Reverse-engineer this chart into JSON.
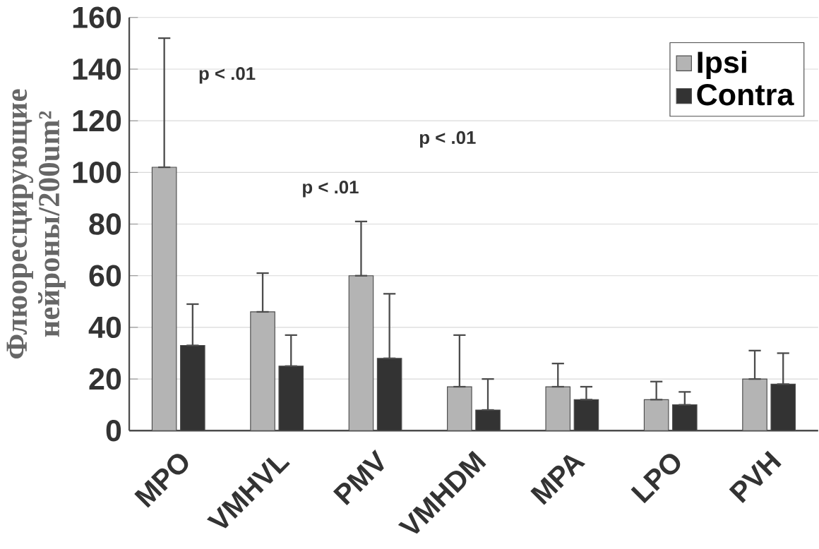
{
  "chart_data": {
    "type": "bar",
    "ylabel": "Флюоресцирующие нейроны/200um²",
    "categories": [
      "MPO",
      "VMHVL",
      "PMV",
      "VMHDM",
      "MPA",
      "LPO",
      "PVH"
    ],
    "series": [
      {
        "name": "Ipsi",
        "color": "#b4b4b4",
        "values": [
          102,
          46,
          60,
          17,
          17,
          12,
          20
        ],
        "errors": [
          [
            102,
            152
          ],
          [
            46,
            61
          ],
          [
            60,
            81
          ],
          [
            17,
            37
          ],
          [
            17,
            26
          ],
          [
            12,
            19
          ],
          [
            20,
            31
          ]
        ]
      },
      {
        "name": "Contra",
        "color": "#333333",
        "values": [
          33,
          25,
          28,
          8,
          12,
          10,
          18
        ],
        "errors": [
          [
            33,
            49
          ],
          [
            25,
            37
          ],
          [
            28,
            53
          ],
          [
            8,
            20
          ],
          [
            12,
            17
          ],
          [
            10,
            15
          ],
          [
            18,
            30
          ]
        ]
      }
    ],
    "annotations": [
      "p < .01",
      "p < .01",
      "p < .01"
    ],
    "ylim": [
      0,
      160
    ],
    "yticks": [
      0,
      20,
      40,
      60,
      80,
      100,
      120,
      140,
      160
    ],
    "grid": "y",
    "legend": "top right"
  }
}
